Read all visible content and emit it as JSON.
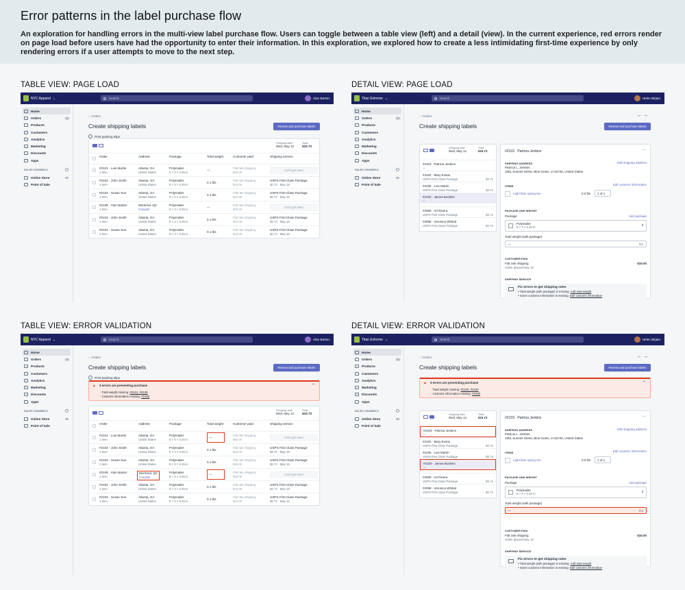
{
  "header": {
    "title": "Error patterns in the label purchase flow",
    "description": "An exploration for handling errors in the multi-view label purchase flow. Users can toggle between a table view (left) and a detail (view). In the current experience, red errors render on page load before users have had the opportunity to enter their information. In this exploration, we explored how to create a less intimidating first-time experience by only rendering errors if a user attempts to move to the next step."
  },
  "sections": {
    "table_load": "TABLE VIEW: PAGE LOAD",
    "detail_load": "DETAIL VIEW: PAGE LOAD",
    "table_err": "TABLE VIEW: ERROR VALIDATION",
    "detail_err": "DETAIL VIEW: ERROR VALIDATION"
  },
  "app": {
    "store_table": "NYC Apparel",
    "store_detail": "Titan Extreme",
    "search_placeholder": "Search",
    "user_table": "Alan Barton",
    "user_detail": "Helen Birjam",
    "nav": [
      "Home",
      "Orders",
      "Products",
      "Customers",
      "Analytics",
      "Marketing",
      "Discounts",
      "Apps"
    ],
    "orders_badge": "15",
    "sales_channels_label": "SALES CHANNELS",
    "channels": [
      "Online Store",
      "Point of Sale"
    ],
    "breadcrumb": "Orders",
    "page_title": "Create shipping labels",
    "primary_button": "Review and purchase labels",
    "print_packing": "Print packing slips",
    "shipping_date_label": "Shipping date",
    "shipping_date": "Wed, May 13",
    "total_label": "Total",
    "total": "$15.73"
  },
  "table": {
    "headers": [
      "Order",
      "Address",
      "Package",
      "Total weight",
      "Customer paid",
      "Shipping service"
    ],
    "rows": [
      {
        "order": "#2101 · Luis Martin",
        "items": "1 item",
        "addr1": "Atlanta, GA",
        "addr2": "United States",
        "pkg1": "Polymailer",
        "pkg2": "8 × 3 × 0.25 in",
        "weight": "—",
        "paid1": "Flat rate shipping",
        "paid2": "$10.00",
        "svc1": "Can't get rates",
        "svc2": ""
      },
      {
        "order": "#2102 · John Smith",
        "items": "1 item",
        "addr1": "Atlanta, GA",
        "addr2": "United States",
        "pkg1": "Polymailer",
        "pkg2": "8 × 3 × 0.25 in",
        "weight": "0.1 lbs",
        "paid1": "Flat rate shipping",
        "paid2": "$10.00",
        "svc1": "USPS First Class Package",
        "svc2": "$2.74 · May 18"
      },
      {
        "order": "#2103 · Susan Sue",
        "items": "1 item",
        "addr1": "Atlanta, GA",
        "addr2": "United States",
        "pkg1": "Polymailer",
        "pkg2": "8 × 3 × 0.25 in",
        "weight": "0.1 lbs",
        "paid1": "Flat rate shipping",
        "paid2": "$10.00",
        "svc1": "USPS First Class Package",
        "svc2": "$2.74 · May 18"
      },
      {
        "order": "#2105 · Alan Barton",
        "items": "1 item",
        "addr1": "Montreal, QC",
        "addr2": "Canada",
        "pkg1": "Polymailer",
        "pkg2": "8 × 3 × 0.25 in",
        "weight": "—",
        "paid1": "Flat rate shipping",
        "paid2": "$10.00",
        "svc1": "Can't get rates",
        "svc2": ""
      },
      {
        "order": "#2102 · John Smith",
        "items": "1 item",
        "addr1": "Atlanta, GA",
        "addr2": "United States",
        "pkg1": "Polymailer",
        "pkg2": "8 × 3 × 0.25 in",
        "weight": "0.1 lbs",
        "paid1": "Flat rate shipping",
        "paid2": "$10.00",
        "svc1": "USPS First Class Package",
        "svc2": "$2.74 · May 18"
      },
      {
        "order": "#2103 · Susan Sue",
        "items": "1 item",
        "addr1": "Atlanta, GA",
        "addr2": "United States",
        "pkg1": "Polymailer",
        "pkg2": "8 × 3 × 0.25 in",
        "weight": "0.1 lbs",
        "paid1": "Flat rate shipping",
        "paid2": "$10.00",
        "svc1": "USPS First Class Package",
        "svc2": "$2.74 · May 18"
      }
    ]
  },
  "banner_table": {
    "title": "3 errors are preventing purchase",
    "l1": "· Total weight missing: ",
    "l1links": "#2101, #2105",
    "l2": "· Customs information missing: ",
    "l2links": "#2105"
  },
  "banner_detail": {
    "title": "3 errors are preventing purchase",
    "l1": "· Total weight missing: ",
    "l1links": "#2103, #2100",
    "l2": "· Customs information missing: ",
    "l2links": "#2100"
  },
  "detail": {
    "list": [
      {
        "name": "#2103 · Patricia Jenkins",
        "svc": "",
        "price": ""
      },
      {
        "name": "#2102 · Mary Evans",
        "svc": "USPS First Class Package",
        "price": "$2.74"
      },
      {
        "name": "#2105 · Luis Martin",
        "svc": "USPS First Class Package",
        "price": "$2.74"
      },
      {
        "name": "#2100 · James Borders",
        "svc": "",
        "price": ""
      },
      {
        "name": "#2099 · Art Rivera",
        "svc": "USPS First Class Package",
        "price": "$2.74"
      },
      {
        "name": "#2098 · Veronica Whited",
        "svc": "USPS First Class Package",
        "price": "$2.74"
      }
    ],
    "order_title": "#2103 · Patricia Jenkins",
    "ship_addr_label": "SHIPPING ADDRESS",
    "edit_ship": "Edit shipping address",
    "addr_name": "Patricia L. Jenkins",
    "addr_line": "1051 Summit Street, Blue Grass, IA 52726, United States",
    "items_label": "ITEMS",
    "edit_customs": "Edit customs information",
    "item_name": "Light blue spring tee",
    "item_weight": "0.0 lbs",
    "item_qty": "1 of 1",
    "pkg_label": "PACKAGE AND WEIGHT",
    "package_label": "Package",
    "add_package": "Add package",
    "pkg_name": "Polymailer",
    "pkg_dims": "8 × 3 × 0.25 in",
    "tw_label": "Total weight (with package)",
    "tw_value": "—",
    "tw_unit": "lbs",
    "paid_label": "CUSTOMER PAID",
    "flat": "Flat rate shipping",
    "flat_price": "$10.00",
    "placed": "Order placed May 10",
    "svc_label": "SHIPPING SERVICE",
    "fix_title": "Fix errors to get shipping rates",
    "fix1": "• Total weight (with package) is missing. ",
    "fix1link": "Add total weight",
    "fix2": "• Some customs information is missing. ",
    "fix2link": "Edit customs information"
  },
  "colors": {
    "topbar": "#1c2260",
    "primary": "#5c6ac4",
    "error": "#de3618",
    "banner_bg": "#fbeae5"
  }
}
